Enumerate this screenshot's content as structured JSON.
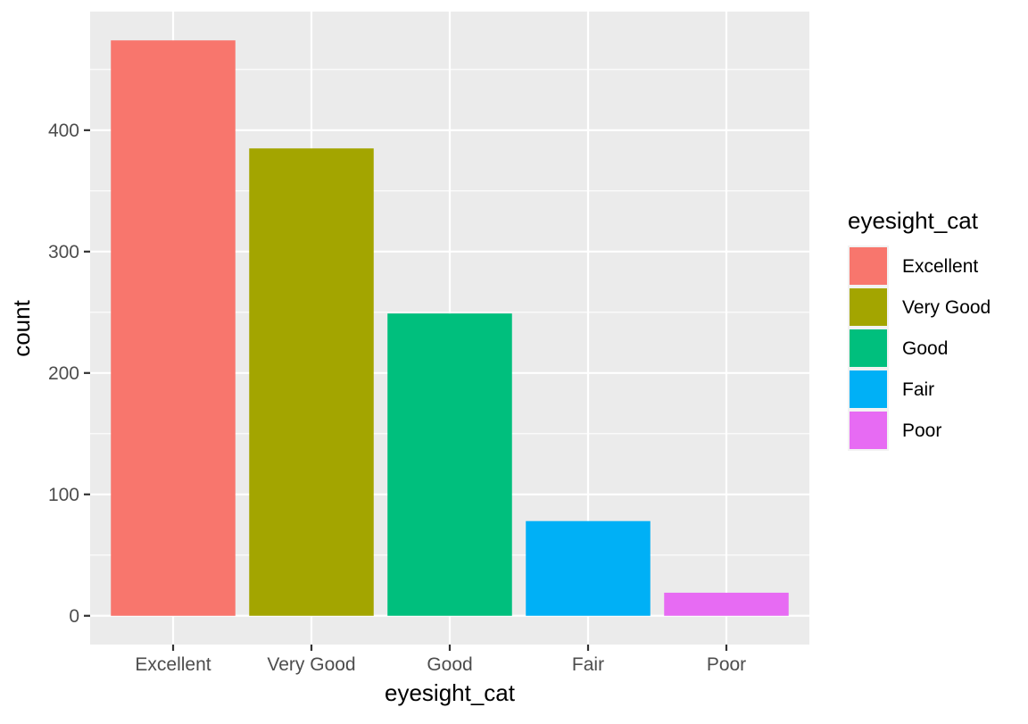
{
  "chart_data": {
    "type": "bar",
    "categories": [
      "Excellent",
      "Very Good",
      "Good",
      "Fair",
      "Poor"
    ],
    "values": [
      474,
      385,
      249,
      78,
      19
    ],
    "colors": [
      "#F8766D",
      "#A3A500",
      "#00BF7D",
      "#00B0F6",
      "#E76BF3"
    ],
    "xlabel": "eyesight_cat",
    "ylabel": "count",
    "yticks": [
      0,
      100,
      200,
      300,
      400
    ],
    "ylim": [
      -23.7,
      497.7
    ],
    "grid": true,
    "legend": {
      "title": "eyesight_cat",
      "placement": "right",
      "entries": [
        "Excellent",
        "Very Good",
        "Good",
        "Fair",
        "Poor"
      ]
    }
  }
}
